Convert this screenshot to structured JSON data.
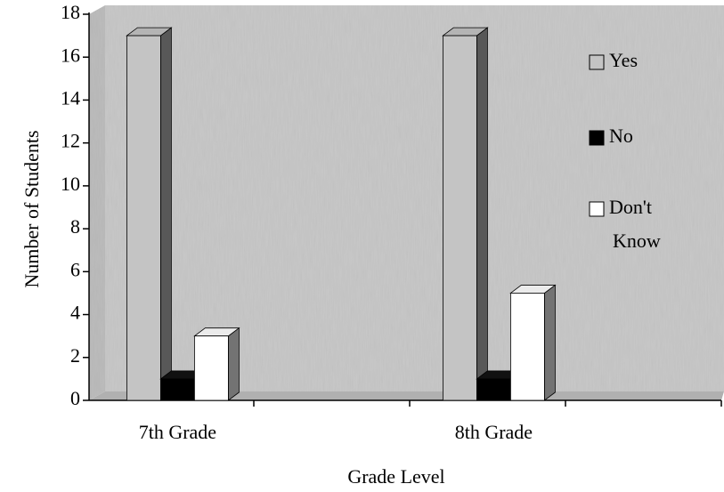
{
  "chart_data": {
    "type": "bar3d",
    "x_label": "Grade Level",
    "y_label": "Number of Students",
    "categories": [
      "7th Grade",
      "8th Grade"
    ],
    "series": [
      {
        "name": "Yes",
        "color": "#c4c4c4",
        "values": [
          17,
          17
        ]
      },
      {
        "name": "No",
        "color": "#000000",
        "values": [
          1,
          1
        ]
      },
      {
        "name": "Don't Know",
        "color": "#ffffff",
        "values": [
          3,
          5
        ]
      }
    ],
    "ylim": [
      0,
      18
    ],
    "yticks": [
      0,
      2,
      4,
      6,
      8,
      10,
      12,
      14,
      16,
      18
    ],
    "legend": "right"
  }
}
